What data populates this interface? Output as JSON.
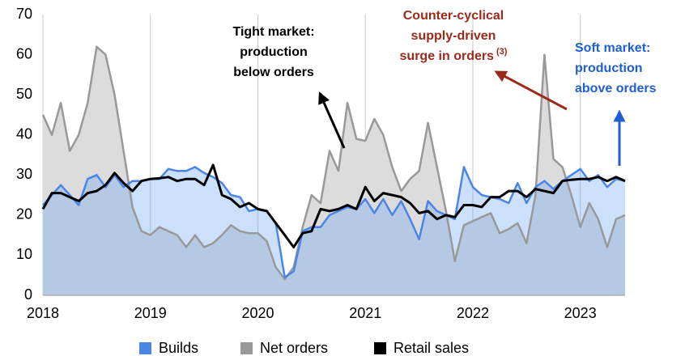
{
  "chart_data": {
    "type": "area",
    "x": [
      "2018-01",
      "2018-02",
      "2018-03",
      "2018-04",
      "2018-05",
      "2018-06",
      "2018-07",
      "2018-08",
      "2018-09",
      "2018-10",
      "2018-11",
      "2018-12",
      "2019-01",
      "2019-02",
      "2019-03",
      "2019-04",
      "2019-05",
      "2019-06",
      "2019-07",
      "2019-08",
      "2019-09",
      "2019-10",
      "2019-11",
      "2019-12",
      "2020-01",
      "2020-02",
      "2020-03",
      "2020-04",
      "2020-05",
      "2020-06",
      "2020-07",
      "2020-08",
      "2020-09",
      "2020-10",
      "2020-11",
      "2020-12",
      "2021-01",
      "2021-02",
      "2021-03",
      "2021-04",
      "2021-05",
      "2021-06",
      "2021-07",
      "2021-08",
      "2021-09",
      "2021-10",
      "2021-11",
      "2021-12",
      "2022-01",
      "2022-02",
      "2022-03",
      "2022-04",
      "2022-05",
      "2022-06",
      "2022-07",
      "2022-08",
      "2022-09",
      "2022-10",
      "2022-11",
      "2022-12",
      "2023-01",
      "2023-02",
      "2023-03",
      "2023-04",
      "2023-05",
      "2023-06"
    ],
    "series": [
      {
        "name": "Net orders",
        "color": "#999999",
        "fill": "#dcdcdc",
        "area": true,
        "values": [
          45,
          40,
          48,
          36,
          40,
          48,
          62,
          60,
          50,
          36,
          22,
          16,
          15,
          17,
          16,
          15,
          12,
          15,
          12,
          13,
          15,
          17.5,
          16,
          15.5,
          15.5,
          13.5,
          7,
          4,
          7,
          17,
          25,
          23,
          36,
          31,
          48,
          39,
          38.5,
          44,
          40,
          32,
          26,
          29,
          31,
          43,
          32,
          21,
          8.5,
          17.5,
          18.5,
          19.5,
          20.5,
          15.5,
          16.5,
          18,
          13,
          25,
          60,
          34,
          32,
          25,
          17,
          23,
          19,
          12,
          19,
          20
        ]
      },
      {
        "name": "Builds",
        "color": "#4a86e8",
        "fill": "rgba(110,165,245,0.35)",
        "area": true,
        "values": [
          22.5,
          25,
          27.5,
          25,
          22.5,
          29,
          30,
          27,
          30,
          27,
          28.5,
          28.5,
          29,
          29,
          31.5,
          31,
          31,
          32,
          30.5,
          29.5,
          28,
          25,
          24.5,
          21,
          21.5,
          21,
          18,
          4.5,
          6,
          16,
          17,
          17,
          20,
          21,
          22,
          21.5,
          24,
          20.5,
          24,
          20,
          23.5,
          19,
          14,
          23.5,
          21,
          20,
          19,
          32,
          27,
          25,
          24.5,
          24,
          23,
          28,
          23,
          27,
          28.5,
          26.5,
          28.5,
          30,
          31.5,
          28.5,
          30,
          27,
          29,
          28.5
        ]
      },
      {
        "name": "Retail sales",
        "color": "#000000",
        "area": false,
        "values": [
          21.5,
          25.5,
          25.5,
          24.5,
          23.5,
          25.5,
          26,
          27.5,
          30.5,
          28,
          26,
          28.5,
          29,
          29.2,
          29.5,
          28.5,
          29,
          29,
          27.5,
          32.5,
          25,
          24,
          22,
          23,
          21.5,
          21,
          18,
          15,
          12,
          15.5,
          16,
          21.5,
          21,
          21.5,
          22.5,
          21.5,
          27,
          23.5,
          25.5,
          25,
          24.5,
          23,
          20.5,
          21,
          19,
          20,
          19.5,
          22.5,
          22.5,
          22,
          24.5,
          24.5,
          26,
          26,
          24.5,
          26.5,
          26,
          25.5,
          28.5,
          28.8,
          29,
          29,
          29.5,
          28.5,
          29.5,
          28.5
        ]
      }
    ],
    "legend_order": [
      "Builds",
      "Net orders",
      "Retail sales"
    ],
    "xlim": [
      "2018-01",
      "2023-06"
    ],
    "xticks": [
      {
        "value": "2018-01",
        "label": "2018"
      },
      {
        "value": "2019-01",
        "label": "2019"
      },
      {
        "value": "2020-01",
        "label": "2020"
      },
      {
        "value": "2021-01",
        "label": "2021"
      },
      {
        "value": "2022-01",
        "label": "2022"
      },
      {
        "value": "2023-01",
        "label": "2023"
      }
    ],
    "ylim": [
      0,
      70
    ],
    "yticks": [
      0,
      10,
      20,
      30,
      40,
      50,
      60,
      70
    ],
    "grid": "x",
    "annotations": [
      {
        "lines": [
          "Tight market:",
          "production",
          "below orders"
        ],
        "color": "#000000"
      },
      {
        "lines": [
          "Counter-cyclical",
          "supply-driven",
          "surge in orders"
        ],
        "superscript": "(3)",
        "color": "#9b2a1a"
      },
      {
        "lines": [
          "Soft market:",
          "production",
          "above orders"
        ],
        "color": "#1f5fd1"
      }
    ]
  }
}
